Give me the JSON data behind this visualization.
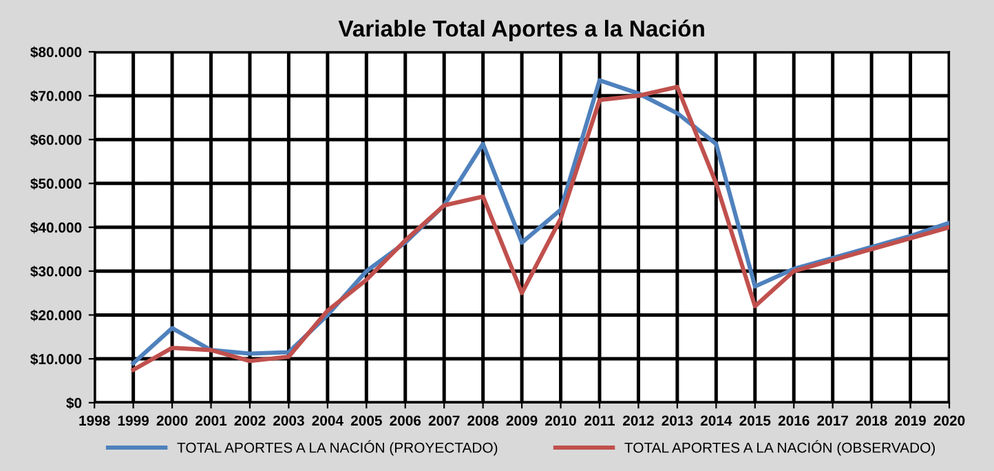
{
  "chart_data": {
    "type": "line",
    "title": "Variable Total Aportes a la Nación",
    "x": [
      1999,
      2000,
      2001,
      2002,
      2003,
      2004,
      2005,
      2006,
      2007,
      2008,
      2009,
      2010,
      2011,
      2012,
      2013,
      2014,
      2015,
      2016,
      2017,
      2018,
      2019,
      2020
    ],
    "series": [
      {
        "name": "TOTAL APORTES A LA NACIÓN (PROYECTADO)",
        "color": "#4f81bd",
        "values": [
          9000,
          17000,
          12000,
          11200,
          11500,
          20000,
          30000,
          36500,
          45000,
          59000,
          36500,
          44000,
          73500,
          70500,
          66000,
          59000,
          26500,
          30500,
          33000,
          35500,
          38000,
          41000
        ]
      },
      {
        "name": "TOTAL APORTES A LA NACIÓN (OBSERVADO)",
        "color": "#c0504d",
        "values": [
          7500,
          12500,
          12000,
          9500,
          10500,
          21000,
          28000,
          37000,
          45000,
          47000,
          25000,
          42000,
          69000,
          70000,
          72000,
          50000,
          22000,
          30000,
          32500,
          35000,
          37500,
          40000
        ]
      }
    ],
    "xlim": [
      1998,
      2020
    ],
    "xticks": [
      1998,
      1999,
      2000,
      2001,
      2002,
      2003,
      2004,
      2005,
      2006,
      2007,
      2008,
      2009,
      2010,
      2011,
      2012,
      2013,
      2014,
      2015,
      2016,
      2017,
      2018,
      2019,
      2020
    ],
    "ylim": [
      0,
      80000
    ],
    "yticks": [
      {
        "value": 0,
        "label": "$0"
      },
      {
        "value": 10000,
        "label": "$10.000"
      },
      {
        "value": 20000,
        "label": "$20.000"
      },
      {
        "value": 30000,
        "label": "$30.000"
      },
      {
        "value": 40000,
        "label": "$40.000"
      },
      {
        "value": 50000,
        "label": "$50.000"
      },
      {
        "value": 60000,
        "label": "$60.000"
      },
      {
        "value": 70000,
        "label": "$70.000"
      },
      {
        "value": 80000,
        "label": "$80.000"
      }
    ],
    "grid": true,
    "legend": "bottom",
    "marker": "none",
    "line_style": "solid"
  }
}
